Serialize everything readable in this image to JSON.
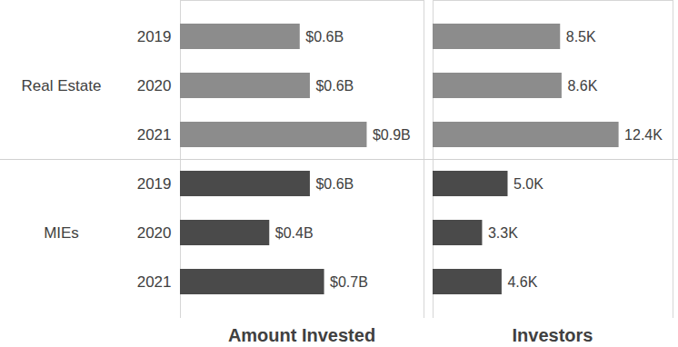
{
  "chart_data": [
    {
      "type": "bar",
      "title": "Amount Invested",
      "orientation": "horizontal",
      "data_labels": true,
      "tick_labels": "y",
      "categories": [
        "2019",
        "2020",
        "2021"
      ],
      "series": [
        {
          "name": "Real Estate",
          "color": "#8c8c8c",
          "values": [
            0.59,
            0.64,
            0.92
          ],
          "value_labels": [
            "$0.6B",
            "$0.6B",
            "$0.9B"
          ]
        },
        {
          "name": "MIEs",
          "color": "#4a4a4a",
          "values": [
            0.64,
            0.44,
            0.71
          ],
          "value_labels": [
            "$0.6B",
            "$0.4B",
            "$0.7B"
          ]
        }
      ],
      "xlim": [
        0,
        1.2
      ]
    },
    {
      "type": "bar",
      "title": "Investors",
      "orientation": "horizontal",
      "data_labels": true,
      "tick_labels": false,
      "categories": [
        "2019",
        "2020",
        "2021"
      ],
      "series": [
        {
          "name": "Real Estate",
          "color": "#8c8c8c",
          "values": [
            8.5,
            8.6,
            12.4
          ],
          "value_labels": [
            "8.5K",
            "8.6K",
            "12.4K"
          ]
        },
        {
          "name": "MIEs",
          "color": "#4a4a4a",
          "values": [
            5.0,
            3.3,
            4.6
          ],
          "value_labels": [
            "5.0K",
            "3.3K",
            "4.6K"
          ]
        }
      ],
      "xlim": [
        0,
        16
      ]
    }
  ]
}
